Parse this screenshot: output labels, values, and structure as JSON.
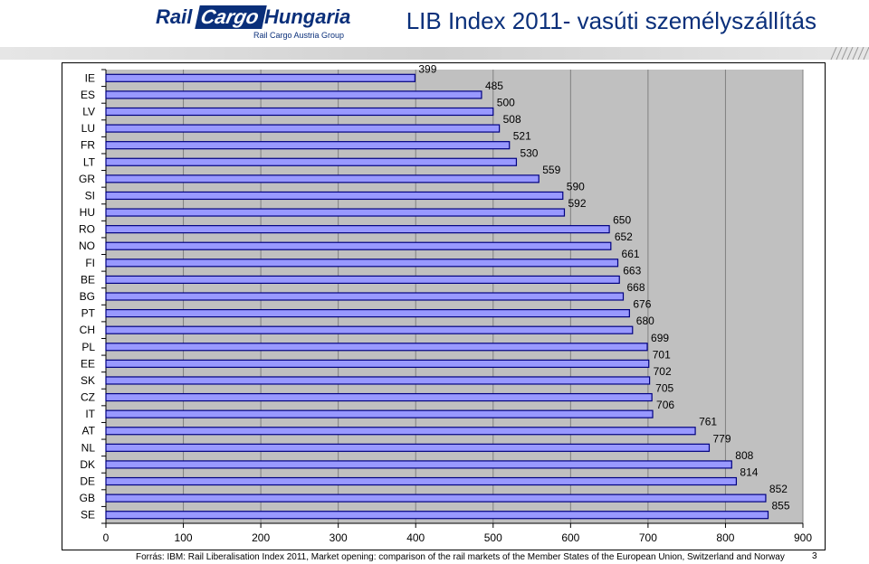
{
  "header": {
    "logo_rail": "Rail",
    "logo_cargo": "Cargo",
    "logo_hungaria": "Hungaria",
    "logo_sub": "Rail Cargo Austria Group",
    "title": "LIB Index 2011- vasúti személyszállítás"
  },
  "colors": {
    "bar_fill": "#9999ff",
    "bar_stroke": "#000080",
    "plot_bg": "#c0c0c0",
    "brand": "#0a2f7a",
    "stripe": "#d9d9d9"
  },
  "chart_data": {
    "type": "bar",
    "orientation": "horizontal",
    "categories": [
      "IE",
      "ES",
      "LV",
      "LU",
      "FR",
      "LT",
      "GR",
      "SI",
      "HU",
      "RO",
      "NO",
      "FI",
      "BE",
      "BG",
      "PT",
      "CH",
      "PL",
      "EE",
      "SK",
      "CZ",
      "IT",
      "AT",
      "NL",
      "DK",
      "DE",
      "GB",
      "SE"
    ],
    "values": [
      399,
      485,
      500,
      508,
      521,
      530,
      559,
      590,
      592,
      650,
      652,
      661,
      663,
      668,
      676,
      680,
      699,
      701,
      702,
      705,
      706,
      761,
      779,
      808,
      814,
      852,
      855
    ],
    "xlim": [
      0,
      900
    ],
    "xticks": [
      0,
      100,
      200,
      300,
      400,
      500,
      600,
      700,
      800,
      900
    ],
    "grid": true,
    "legend": "none"
  },
  "footer": {
    "source": "Forrás: IBM:  Rail Liberalisation Index 2011, Market opening: comparison of the rail markets of the Member States of the European Union, Switzerland and Norway",
    "page_number": "3"
  }
}
